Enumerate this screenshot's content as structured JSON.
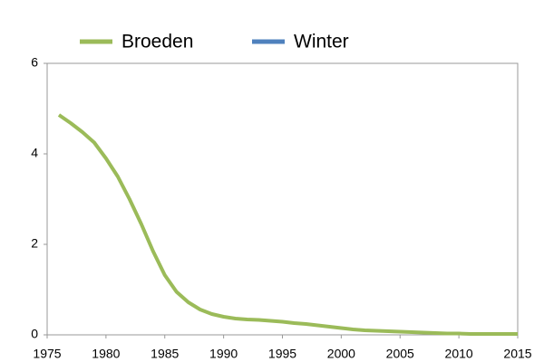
{
  "chart_data": {
    "type": "line",
    "x": [
      1976,
      1977,
      1978,
      1979,
      1980,
      1981,
      1982,
      1983,
      1984,
      1985,
      1986,
      1987,
      1988,
      1989,
      1990,
      1991,
      1992,
      1993,
      1994,
      1995,
      1996,
      1997,
      1998,
      1999,
      2000,
      2001,
      2002,
      2003,
      2004,
      2005,
      2006,
      2007,
      2008,
      2009,
      2010,
      2011,
      2012,
      2013,
      2014,
      2015
    ],
    "series": [
      {
        "name": "Broeden",
        "color": "#9bbb59",
        "values": [
          4.86,
          4.68,
          4.48,
          4.25,
          3.9,
          3.5,
          3.0,
          2.45,
          1.85,
          1.32,
          0.95,
          0.72,
          0.56,
          0.46,
          0.4,
          0.36,
          0.34,
          0.33,
          0.31,
          0.29,
          0.26,
          0.24,
          0.21,
          0.18,
          0.15,
          0.12,
          0.1,
          0.09,
          0.08,
          0.07,
          0.06,
          0.05,
          0.04,
          0.03,
          0.03,
          0.02,
          0.02,
          0.02,
          0.02,
          0.02
        ]
      },
      {
        "name": "Winter",
        "color": "#4f81bd",
        "values": [
          null,
          null,
          null,
          null,
          null,
          null,
          null,
          null,
          null,
          null,
          null,
          null,
          null,
          null,
          null,
          null,
          null,
          null,
          null,
          null,
          null,
          null,
          null,
          null,
          null,
          null,
          null,
          null,
          null,
          null,
          null,
          null,
          null,
          null,
          null,
          null,
          null,
          null,
          null,
          null
        ]
      }
    ],
    "xlim": [
      1975,
      2015
    ],
    "xticks": [
      1975,
      1980,
      1985,
      1990,
      1995,
      2000,
      2005,
      2010,
      2015
    ],
    "ylim": [
      0,
      6
    ],
    "yticks": [
      0,
      2,
      4,
      6
    ],
    "grid": false
  }
}
